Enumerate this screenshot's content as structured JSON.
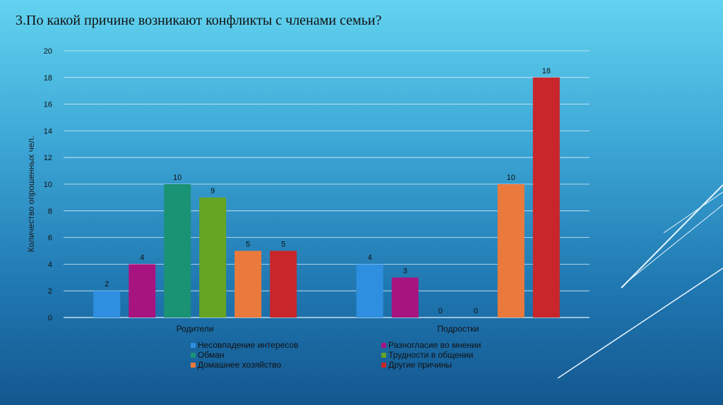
{
  "slide": {
    "title": "3.По какой причине возникают конфликты с членами семьи?"
  },
  "chart_data": {
    "type": "bar",
    "title": "3.По какой причине возникают конфликты с членами семьи?",
    "xlabel": "",
    "ylabel": "Количество опрошенных  чел.",
    "ylim": [
      0,
      20
    ],
    "yticks": [
      0,
      2,
      4,
      6,
      8,
      10,
      12,
      14,
      16,
      18,
      20
    ],
    "grid": true,
    "legend_position": "bottom",
    "categories": [
      "Родители",
      "Подростки"
    ],
    "series": [
      {
        "name": "Несовпадение интересов",
        "color": "#2e8fe0",
        "values": [
          2,
          4
        ]
      },
      {
        "name": "Разногласие во мнении",
        "color": "#a8147f",
        "values": [
          4,
          3
        ]
      },
      {
        "name": "Обман",
        "color": "#1a9274",
        "values": [
          10,
          0
        ]
      },
      {
        "name": "Трудности в общении",
        "color": "#66a424",
        "values": [
          9,
          0
        ]
      },
      {
        "name": "Домашнее хозяйство",
        "color": "#ea7a3c",
        "values": [
          5,
          10
        ]
      },
      {
        "name": "Другие причины",
        "color": "#c8262b",
        "values": [
          5,
          18
        ]
      }
    ]
  }
}
